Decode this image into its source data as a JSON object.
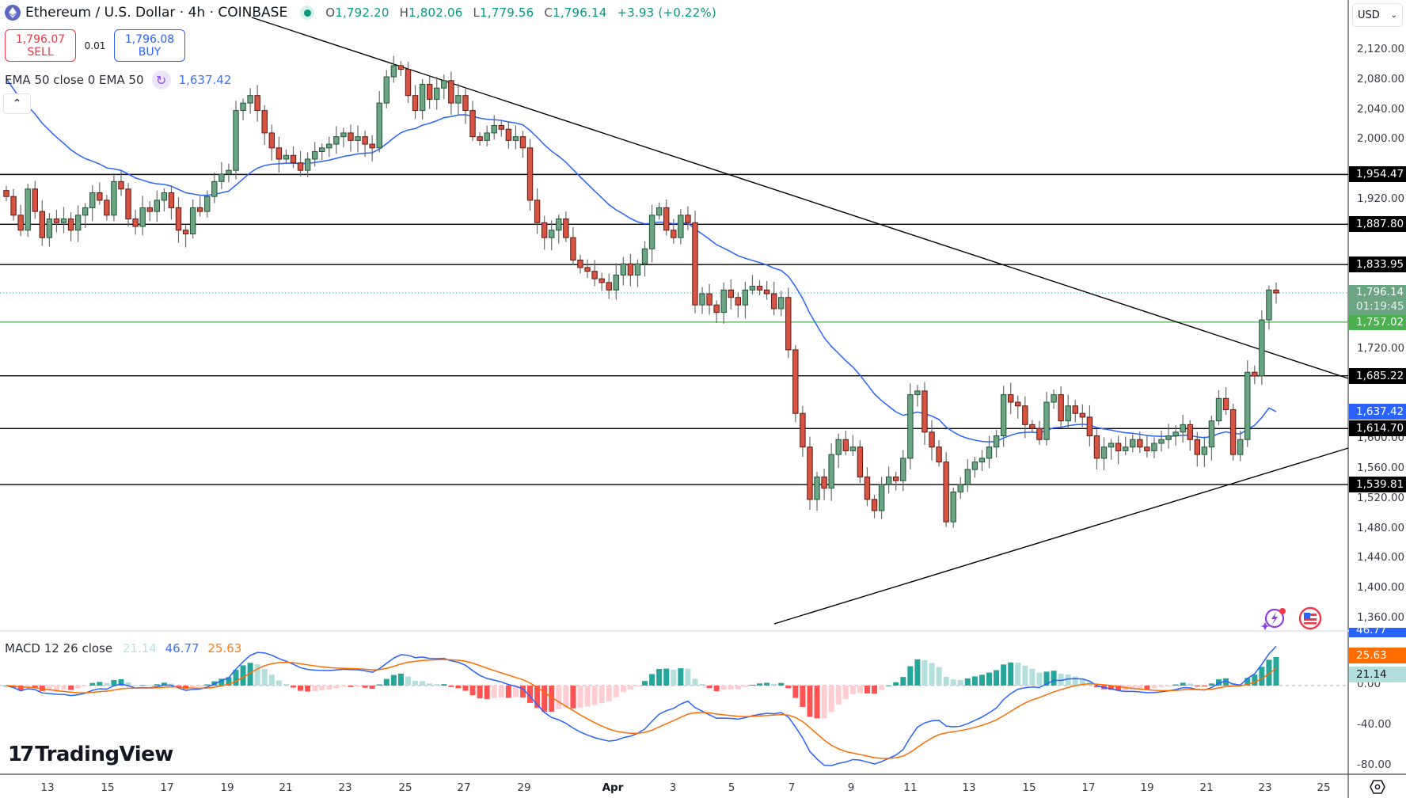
{
  "header": {
    "symbol_title": "Ethereum / U.S. Dollar · 4h · COINBASE",
    "ohlc": {
      "open_label": "O",
      "open": "1,792.20",
      "high_label": "H",
      "high": "1,802.06",
      "low_label": "L",
      "low": "1,779.56",
      "close_label": "C",
      "close": "1,796.14",
      "change": "+3.93 (+0.22%)"
    },
    "market_status_icon": "market-open-dot"
  },
  "trade": {
    "sell_price": "1,796.07",
    "sell_label": "SELL",
    "spread": "0.01",
    "buy_price": "1,796.08",
    "buy_label": "BUY"
  },
  "ema_legend": {
    "label": "EMA 50 close 0 EMA 50",
    "value": "1,637.42"
  },
  "macd_legend": {
    "label": "MACD 12 26 close",
    "histogram": "21.14",
    "macd": "46.77",
    "signal": "25.63"
  },
  "currency_selector": {
    "value": "USD"
  },
  "logo": {
    "text": "TradingView"
  },
  "colors": {
    "up": "#6ba583",
    "down": "#d75442",
    "outline_up": "#225437",
    "outline_down": "#5b1a13",
    "ema": "#2962ff",
    "macd": "#2962ff",
    "signal": "#ff6d00",
    "hist_up_strong": "#26a69a",
    "hist_up_weak": "#b2dfdb",
    "hist_down_strong": "#ff5252",
    "hist_down_weak": "#ffcdd2",
    "hline": "#000000",
    "green_line": "#4caf50"
  },
  "chart_data": {
    "type": "candlestick",
    "title": "Ethereum / U.S. Dollar · 4h · COINBASE",
    "price_axis": {
      "ticks": [
        "2,120.00",
        "2,080.00",
        "2,040.00",
        "2,000.00",
        "1,920.00",
        "1,720.00",
        "1,600.00",
        "1,560.00",
        "1,520.00",
        "1,480.00",
        "1,440.00",
        "1,400.00",
        "1,360.00"
      ],
      "range": [
        1360,
        2120
      ]
    },
    "time_axis": {
      "ticks": [
        "13",
        "15",
        "17",
        "19",
        "21",
        "23",
        "25",
        "27",
        "29",
        "Apr",
        "3",
        "5",
        "7",
        "9",
        "11",
        "13",
        "15",
        "17",
        "19",
        "21",
        "23",
        "25"
      ]
    },
    "horizontal_levels": [
      {
        "value": "1,954.47",
        "price": 1954.47,
        "color": "#000000"
      },
      {
        "value": "1,887.80",
        "price": 1887.8,
        "color": "#000000"
      },
      {
        "value": "1,833.95",
        "price": 1833.95,
        "color": "#000000"
      },
      {
        "value": "1,757.02",
        "price": 1757.02,
        "color": "#4caf50"
      },
      {
        "value": "1,685.22",
        "price": 1685.22,
        "color": "#000000"
      },
      {
        "value": "1,614.70",
        "price": 1614.7,
        "color": "#000000"
      },
      {
        "value": "1,539.81",
        "price": 1539.81,
        "color": "#000000"
      }
    ],
    "last_price": {
      "value": "1,796.14",
      "countdown": "01:19:45",
      "price": 1796.14
    },
    "ema50_last": {
      "value": "1,637.42",
      "price": 1637.42
    },
    "trendlines": [
      {
        "name": "descending-resistance",
        "from": [
          "Mar 22",
          2120
        ],
        "to": [
          "Apr 25",
          1685
        ]
      },
      {
        "name": "ascending-support",
        "from": [
          "Apr 7",
          1368
        ],
        "to": [
          "Apr 25",
          1595
        ]
      }
    ],
    "candles_close_approx": [
      1925,
      1900,
      1880,
      1935,
      1905,
      1870,
      1895,
      1890,
      1895,
      1880,
      1900,
      1910,
      1930,
      1920,
      1900,
      1945,
      1935,
      1895,
      1885,
      1910,
      1905,
      1920,
      1930,
      1910,
      1880,
      1875,
      1910,
      1905,
      1925,
      1945,
      1955,
      1960,
      2040,
      2050,
      2060,
      2040,
      2010,
      1990,
      1975,
      1980,
      1970,
      1960,
      1975,
      1985,
      1990,
      1995,
      2005,
      2010,
      2000,
      2005,
      1995,
      1990,
      2050,
      2085,
      2100,
      2095,
      2060,
      2040,
      2075,
      2055,
      2070,
      2080,
      2050,
      2060,
      2040,
      2005,
      2000,
      2010,
      2020,
      2015,
      2000,
      2005,
      1990,
      1920,
      1890,
      1870,
      1880,
      1895,
      1870,
      1840,
      1830,
      1825,
      1815,
      1810,
      1800,
      1820,
      1835,
      1820,
      1835,
      1855,
      1900,
      1910,
      1880,
      1870,
      1900,
      1890,
      1780,
      1795,
      1780,
      1770,
      1800,
      1790,
      1780,
      1800,
      1805,
      1800,
      1795,
      1775,
      1790,
      1720,
      1635,
      1590,
      1520,
      1550,
      1535,
      1580,
      1600,
      1585,
      1590,
      1550,
      1520,
      1505,
      1540,
      1550,
      1545,
      1575,
      1660,
      1665,
      1610,
      1590,
      1570,
      1490,
      1530,
      1540,
      1560,
      1570,
      1575,
      1590,
      1605,
      1660,
      1650,
      1645,
      1620,
      1615,
      1600,
      1650,
      1660,
      1625,
      1645,
      1635,
      1630,
      1605,
      1575,
      1590,
      1595,
      1585,
      1590,
      1600,
      1590,
      1585,
      1595,
      1600,
      1605,
      1610,
      1620,
      1600,
      1580,
      1590,
      1625,
      1655,
      1640,
      1580,
      1600,
      1690,
      1685,
      1760,
      1800,
      1796
    ],
    "ema50_approx": {
      "start": 2095,
      "end": 1637.42
    },
    "macd_panel": {
      "ticks": [
        "0.00",
        "-40.00",
        "-80.00"
      ],
      "last": {
        "macd": 46.77,
        "signal": 25.63,
        "histogram": 21.14
      },
      "range": [
        -90,
        50
      ]
    }
  },
  "axis_tags": {
    "levels": [
      "1,954.47",
      "1,887.80",
      "1,833.95",
      "1,685.22",
      "1,614.70",
      "1,539.81"
    ],
    "green_level": "1,757.02",
    "last_price": "1,796.14",
    "countdown": "01:19:45",
    "ema": "1,637.42",
    "macd": "46.77",
    "signal": "25.63",
    "histogram": "21.14"
  }
}
